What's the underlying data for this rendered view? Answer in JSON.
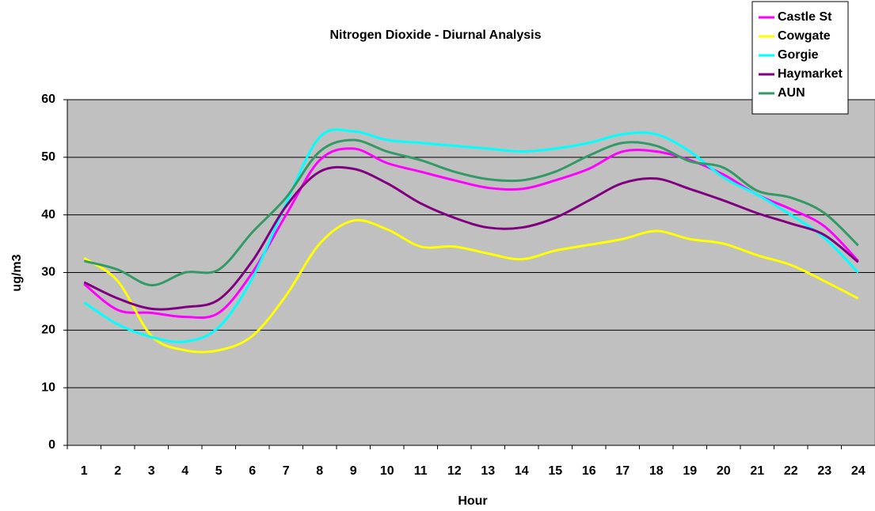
{
  "chart_data": {
    "type": "line",
    "title": "Nitrogen Dioxide - Diurnal Analysis",
    "x_label": "Hour",
    "y_label": "ug/m3",
    "categories": [
      "1",
      "2",
      "3",
      "4",
      "5",
      "6",
      "7",
      "8",
      "9",
      "10",
      "11",
      "12",
      "13",
      "14",
      "15",
      "16",
      "17",
      "18",
      "19",
      "20",
      "21",
      "22",
      "23",
      "24"
    ],
    "series": [
      {
        "name": "Castle St",
        "color": "#ff00ff",
        "values": [
          28,
          23.5,
          23,
          22.3,
          23,
          30,
          40,
          49.5,
          51.5,
          49,
          47.5,
          46,
          44.7,
          44.5,
          46,
          48,
          51,
          51,
          49.5,
          47,
          43.5,
          41,
          38,
          32
        ]
      },
      {
        "name": "Cowgate",
        "color": "#ffff00",
        "values": [
          32.5,
          28.5,
          19,
          16.5,
          16.5,
          19,
          26,
          35,
          39,
          37.5,
          34.5,
          34.5,
          33.3,
          32.3,
          33.8,
          34.8,
          35.8,
          37.2,
          35.8,
          35,
          33,
          31.3,
          28.5,
          25.5
        ]
      },
      {
        "name": "Gorgie",
        "color": "#00ffff",
        "values": [
          24.8,
          21,
          18.8,
          18,
          20.5,
          29,
          42,
          53.5,
          54.5,
          53,
          52.5,
          52,
          51.5,
          51,
          51.5,
          52.5,
          54,
          54,
          51,
          46.5,
          43.5,
          40,
          36,
          30
        ]
      },
      {
        "name": "Haymarket",
        "color": "#800080",
        "values": [
          28.3,
          25.5,
          23.7,
          24,
          25.3,
          32,
          41.5,
          47.5,
          48,
          45.5,
          42,
          39.5,
          37.8,
          37.8,
          39.5,
          42.5,
          45.5,
          46.3,
          44.5,
          42.5,
          40.3,
          38.5,
          36.5,
          31.8
        ]
      },
      {
        "name": "AUN",
        "color": "#339966",
        "values": [
          32,
          30.5,
          27.8,
          30,
          30.5,
          37,
          43,
          51,
          53,
          51,
          49.5,
          47.5,
          46.2,
          46,
          47.5,
          50.3,
          52.5,
          52,
          49.3,
          48.2,
          44.2,
          43,
          40.3,
          34.7
        ]
      }
    ],
    "ylim": [
      0,
      60
    ],
    "yticks": [
      0,
      10,
      20,
      30,
      40,
      50,
      60
    ],
    "grid": true,
    "legend": "top-right"
  }
}
